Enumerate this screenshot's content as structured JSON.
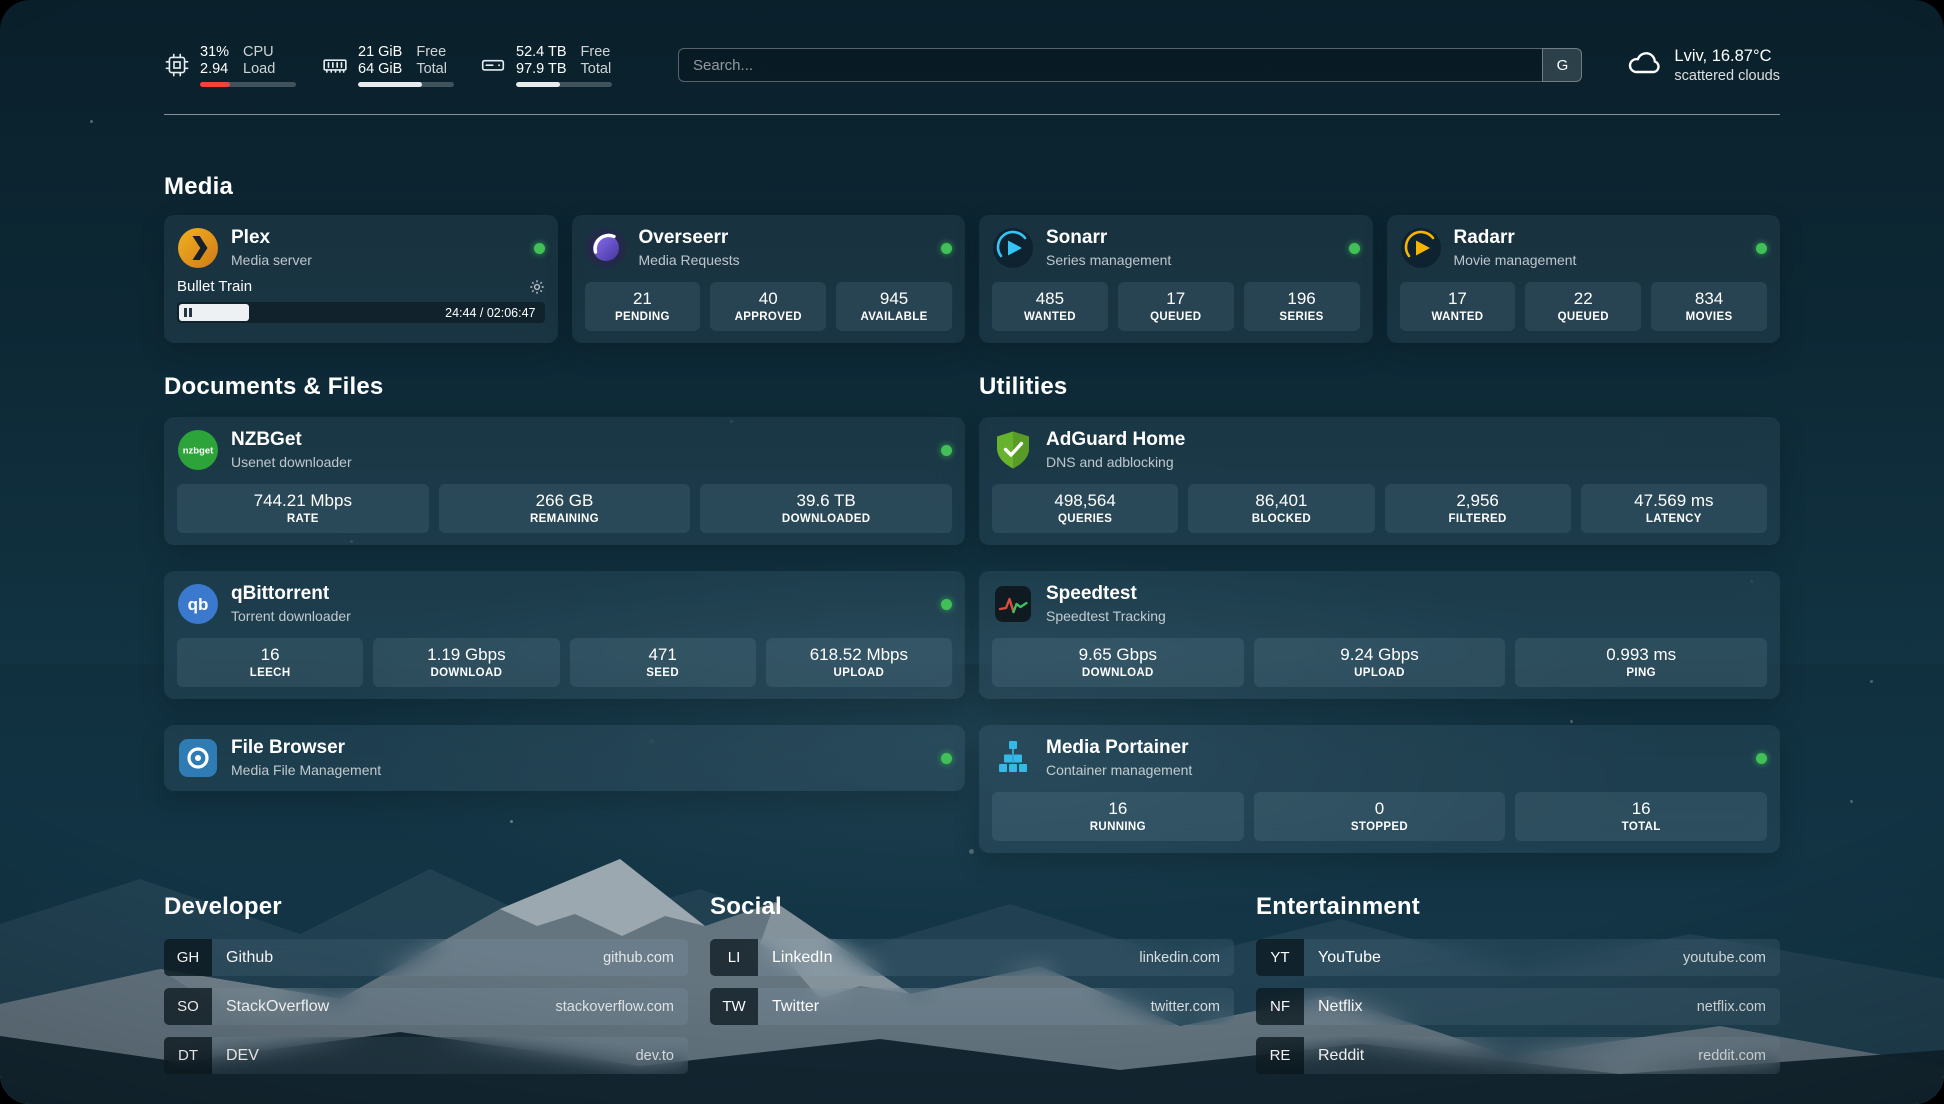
{
  "colors": {
    "status_online": "#40c057",
    "cpu_bar_fill": "#f0433a",
    "usage_bar_fill": "#e9ecef"
  },
  "topbar": {
    "cpu": {
      "value_top": "31%",
      "value_bottom": "2.94",
      "label_top": "CPU",
      "label_bottom": "Load",
      "bar_percent": 31
    },
    "ram": {
      "value_top": "21 GiB",
      "value_bottom": "64 GiB",
      "label_top": "Free",
      "label_bottom": "Total",
      "bar_percent": 67
    },
    "disk": {
      "value_top": "52.4 TB",
      "value_bottom": "97.9 TB",
      "label_top": "Free",
      "label_bottom": "Total",
      "bar_percent": 46
    },
    "search": {
      "placeholder": "Search...",
      "engine_button": "G"
    },
    "weather": {
      "location": "Lviv, 16.87°C",
      "condition": "scattered clouds"
    }
  },
  "icons": {
    "nzbget_text": "nzbget",
    "qbittorrent_text": "qb"
  },
  "sections": {
    "media": {
      "title": "Media",
      "plex": {
        "name": "Plex",
        "subtitle": "Media server",
        "now_playing": {
          "title": "Bullet Train",
          "time": "24:44 / 02:06:47",
          "progress_percent": 19
        }
      },
      "overseerr": {
        "name": "Overseerr",
        "subtitle": "Media Requests",
        "stats": [
          {
            "value": "21",
            "label": "PENDING"
          },
          {
            "value": "40",
            "label": "APPROVED"
          },
          {
            "value": "945",
            "label": "AVAILABLE"
          }
        ]
      },
      "sonarr": {
        "name": "Sonarr",
        "subtitle": "Series management",
        "stats": [
          {
            "value": "485",
            "label": "WANTED"
          },
          {
            "value": "17",
            "label": "QUEUED"
          },
          {
            "value": "196",
            "label": "SERIES"
          }
        ]
      },
      "radarr": {
        "name": "Radarr",
        "subtitle": "Movie management",
        "stats": [
          {
            "value": "17",
            "label": "WANTED"
          },
          {
            "value": "22",
            "label": "QUEUED"
          },
          {
            "value": "834",
            "label": "MOVIES"
          }
        ]
      }
    },
    "documents": {
      "title": "Documents & Files",
      "nzbget": {
        "name": "NZBGet",
        "subtitle": "Usenet downloader",
        "stats": [
          {
            "value": "744.21 Mbps",
            "label": "RATE"
          },
          {
            "value": "266 GB",
            "label": "REMAINING"
          },
          {
            "value": "39.6 TB",
            "label": "DOWNLOADED"
          }
        ]
      },
      "qbittorrent": {
        "name": "qBittorrent",
        "subtitle": "Torrent downloader",
        "stats": [
          {
            "value": "16",
            "label": "LEECH"
          },
          {
            "value": "1.19 Gbps",
            "label": "DOWNLOAD"
          },
          {
            "value": "471",
            "label": "SEED"
          },
          {
            "value": "618.52 Mbps",
            "label": "UPLOAD"
          }
        ]
      },
      "filebrowser": {
        "name": "File Browser",
        "subtitle": "Media File Management"
      }
    },
    "utilities": {
      "title": "Utilities",
      "adguard": {
        "name": "AdGuard Home",
        "subtitle": "DNS and adblocking",
        "stats": [
          {
            "value": "498,564",
            "label": "QUERIES"
          },
          {
            "value": "86,401",
            "label": "BLOCKED"
          },
          {
            "value": "2,956",
            "label": "FILTERED"
          },
          {
            "value": "47.569 ms",
            "label": "LATENCY"
          }
        ]
      },
      "speedtest": {
        "name": "Speedtest",
        "subtitle": "Speedtest Tracking",
        "stats": [
          {
            "value": "9.65 Gbps",
            "label": "DOWNLOAD"
          },
          {
            "value": "9.24 Gbps",
            "label": "UPLOAD"
          },
          {
            "value": "0.993 ms",
            "label": "PING"
          }
        ]
      },
      "portainer": {
        "name": "Media Portainer",
        "subtitle": "Container management",
        "stats": [
          {
            "value": "16",
            "label": "RUNNING"
          },
          {
            "value": "0",
            "label": "STOPPED"
          },
          {
            "value": "16",
            "label": "TOTAL"
          }
        ]
      }
    },
    "bookmarks": [
      {
        "title": "Developer",
        "items": [
          {
            "abbr": "GH",
            "name": "Github",
            "url": "github.com"
          },
          {
            "abbr": "SO",
            "name": "StackOverflow",
            "url": "stackoverflow.com"
          },
          {
            "abbr": "DT",
            "name": "DEV",
            "url": "dev.to"
          }
        ]
      },
      {
        "title": "Social",
        "items": [
          {
            "abbr": "LI",
            "name": "LinkedIn",
            "url": "linkedin.com"
          },
          {
            "abbr": "TW",
            "name": "Twitter",
            "url": "twitter.com"
          }
        ]
      },
      {
        "title": "Entertainment",
        "items": [
          {
            "abbr": "YT",
            "name": "YouTube",
            "url": "youtube.com"
          },
          {
            "abbr": "NF",
            "name": "Netflix",
            "url": "netflix.com"
          },
          {
            "abbr": "RE",
            "name": "Reddit",
            "url": "reddit.com"
          }
        ]
      }
    ]
  }
}
